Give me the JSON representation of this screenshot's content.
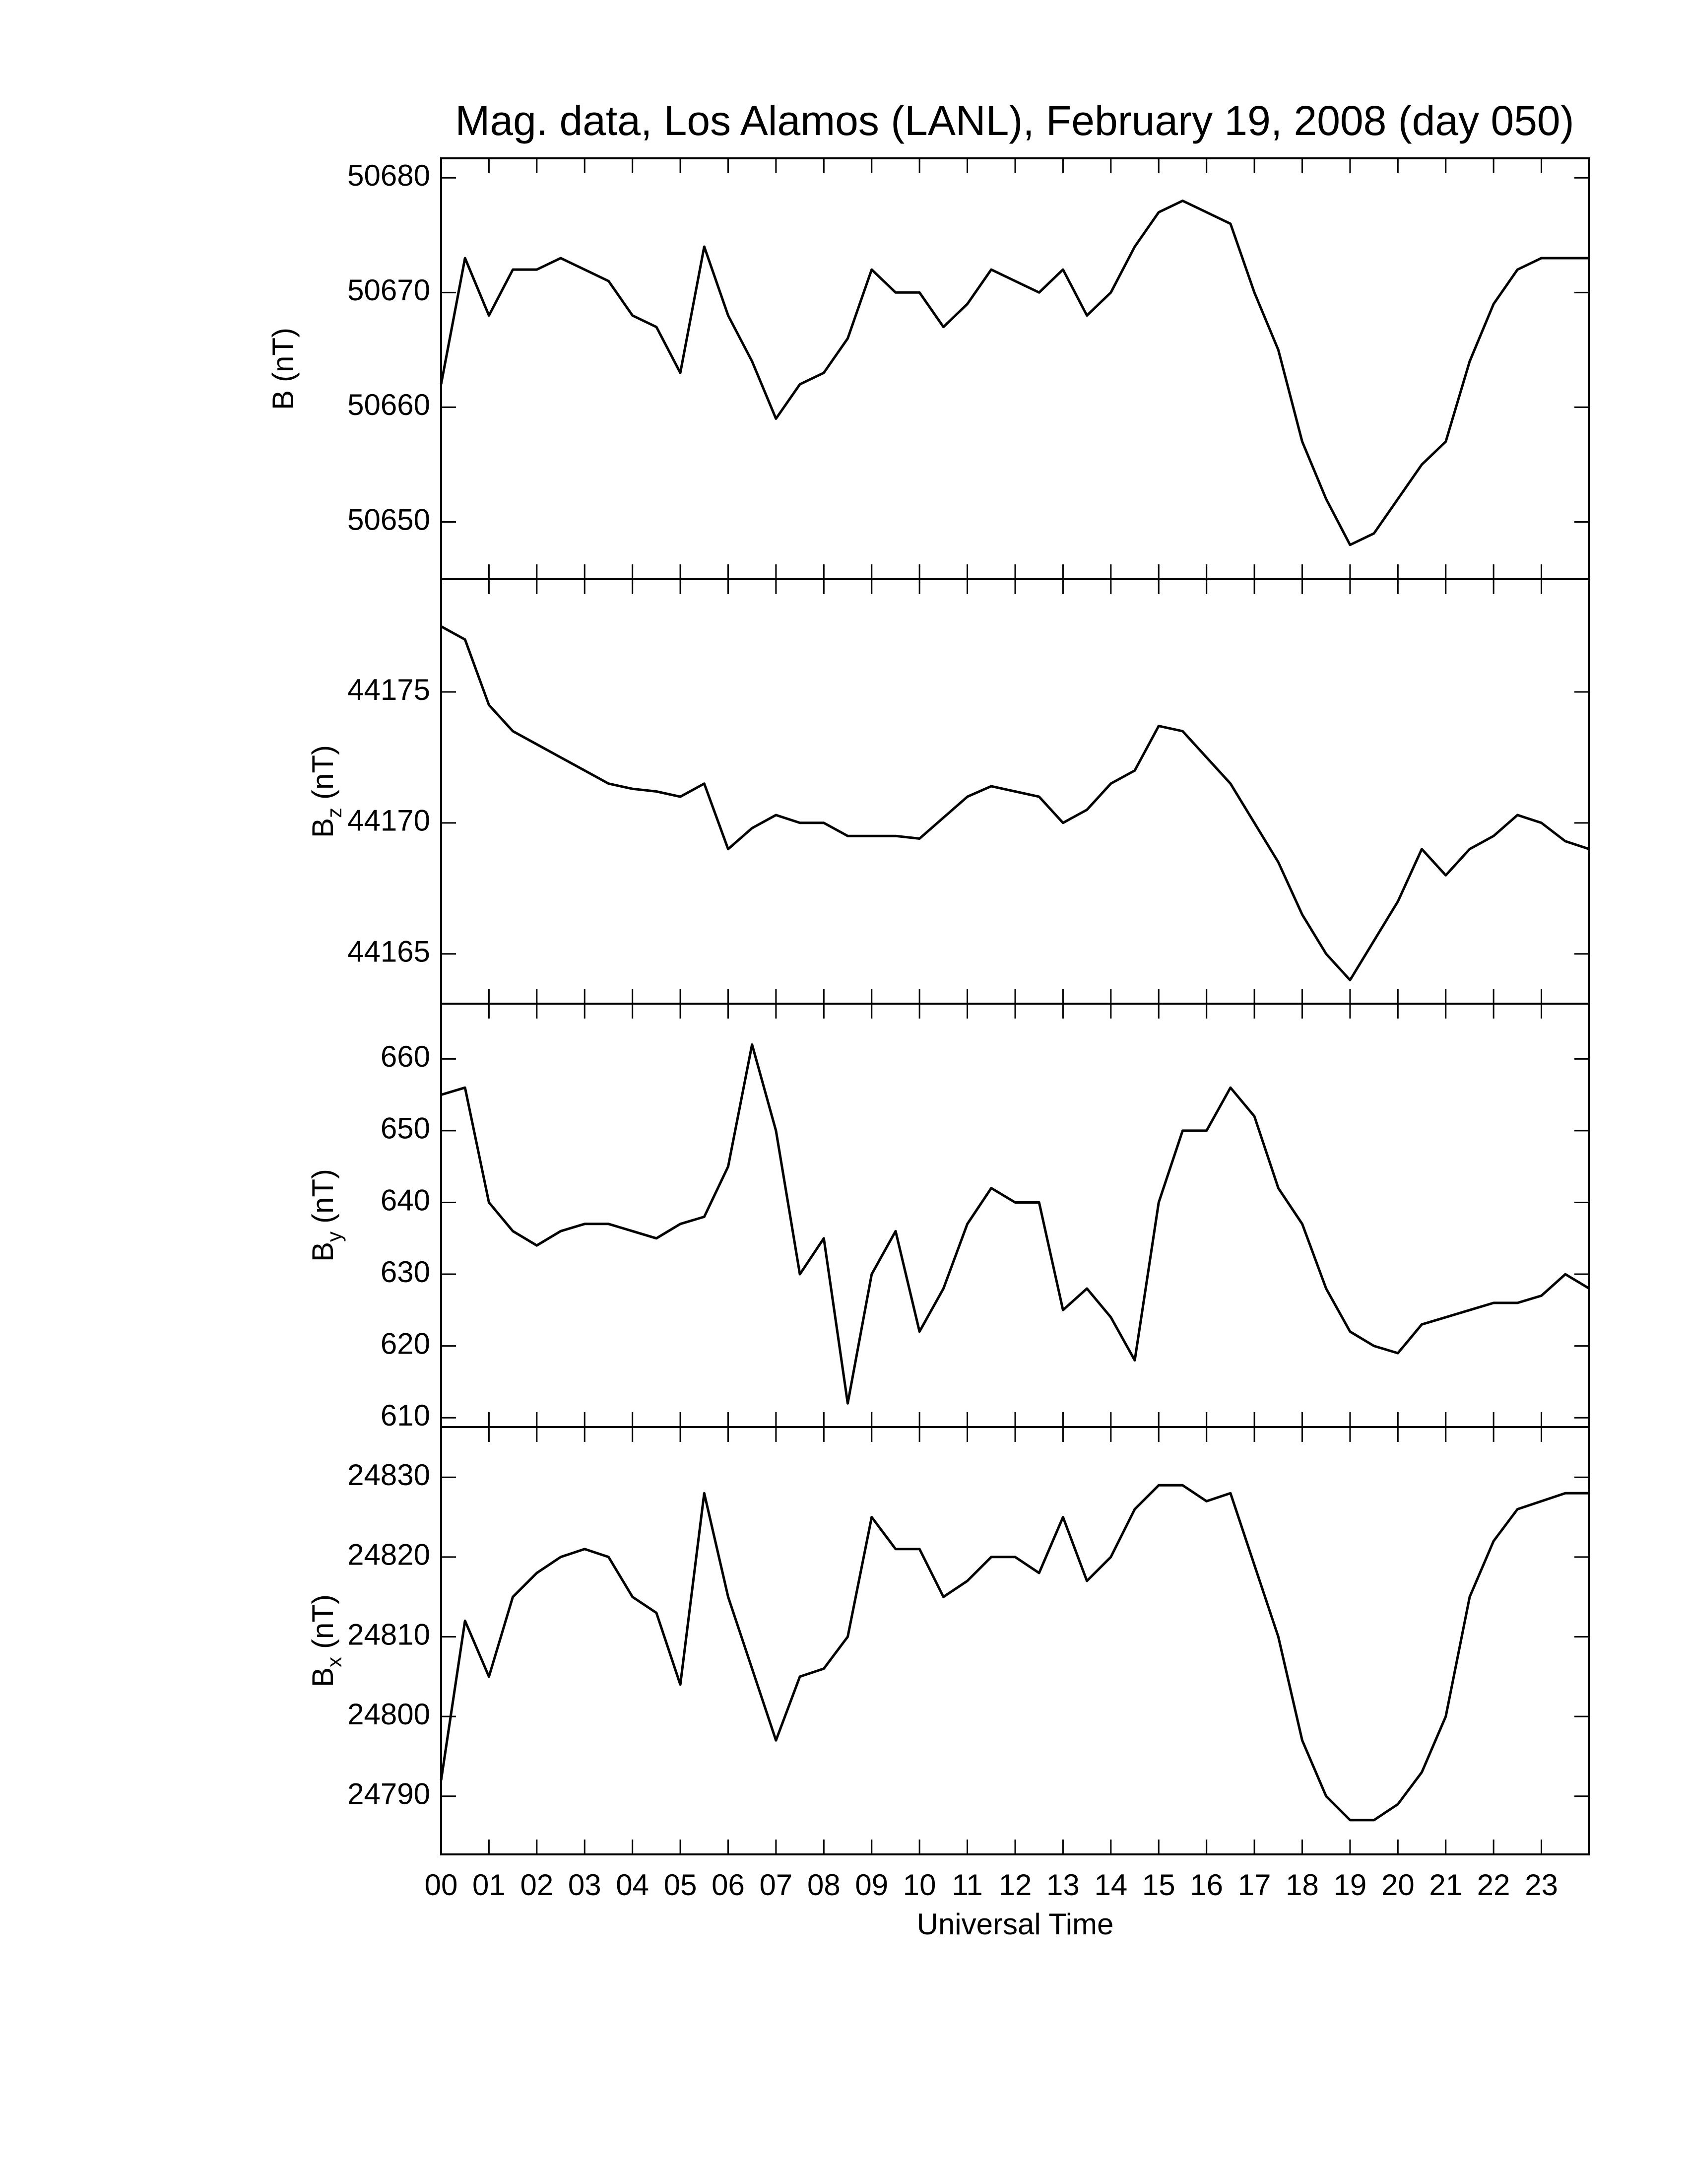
{
  "chart_data": [
    {
      "type": "line",
      "title": "Mag. data, Los Alamos (LANL), February 19, 2008 (day 050)",
      "ylabel": {
        "base": "B",
        "unit": "(nT)"
      },
      "color": "#000000",
      "x": [
        0,
        0.5,
        1,
        1.5,
        2,
        2.5,
        3,
        3.5,
        4,
        4.5,
        5,
        5.5,
        6,
        6.5,
        7,
        7.5,
        8,
        8.5,
        9,
        9.5,
        10,
        10.5,
        11,
        11.5,
        12,
        12.5,
        13,
        13.5,
        14,
        14.5,
        15,
        15.5,
        16,
        16.5,
        17,
        17.5,
        18,
        18.5,
        19,
        19.5,
        20,
        20.5,
        21,
        21.5,
        22,
        22.5,
        23,
        23.5,
        24
      ],
      "values": [
        50662,
        50673,
        50668,
        50672,
        50672,
        50673,
        50672,
        50671,
        50668,
        50667,
        50663,
        50674,
        50668,
        50664,
        50659,
        50662,
        50663,
        50666,
        50672,
        50670,
        50670,
        50667,
        50669,
        50672,
        50671,
        50670,
        50672,
        50668,
        50670,
        50674,
        50677,
        50678,
        50677,
        50676,
        50670,
        50665,
        50657,
        50652,
        50648,
        50649,
        50652,
        50655,
        50657,
        50664,
        50669,
        50672,
        50673,
        50673,
        50673
      ],
      "xlim": [
        0,
        24
      ],
      "xticks": [
        0,
        1,
        2,
        3,
        4,
        5,
        6,
        7,
        8,
        9,
        10,
        11,
        12,
        13,
        14,
        15,
        16,
        17,
        18,
        19,
        20,
        21,
        22,
        23
      ],
      "ylim": [
        50645,
        50681.7
      ],
      "yticks": [
        50650,
        50660,
        50670,
        50680
      ]
    },
    {
      "type": "line",
      "ylabel": {
        "base": "B",
        "sub": "z",
        "unit": "(nT)"
      },
      "color": "#000000",
      "x": [
        0,
        0.5,
        1,
        1.5,
        2,
        2.5,
        3,
        3.5,
        4,
        4.5,
        5,
        5.5,
        6,
        6.5,
        7,
        7.5,
        8,
        8.5,
        9,
        9.5,
        10,
        10.5,
        11,
        11.5,
        12,
        12.5,
        13,
        13.5,
        14,
        14.5,
        15,
        15.5,
        16,
        16.5,
        17,
        17.5,
        18,
        18.5,
        19,
        19.5,
        20,
        20.5,
        21,
        21.5,
        22,
        22.5,
        23,
        23.5,
        24
      ],
      "values": [
        44177.5,
        44177,
        44174.5,
        44173.5,
        44173,
        44172.5,
        44172,
        44171.5,
        44171.3,
        44171.2,
        44171,
        44171.5,
        44169,
        44169.8,
        44170.3,
        44170,
        44170,
        44169.5,
        44169.5,
        44169.5,
        44169.4,
        44170.2,
        44171,
        44171.4,
        44171.2,
        44171,
        44170,
        44170.5,
        44171.5,
        44172,
        44173.7,
        44173.5,
        44172.5,
        44171.5,
        44170,
        44168.5,
        44166.5,
        44165,
        44164,
        44165.5,
        44167,
        44169,
        44168,
        44169,
        44169.5,
        44170.3,
        44170,
        44169.3,
        44169
      ],
      "xlim": [
        0,
        24
      ],
      "xticks": [
        0,
        1,
        2,
        3,
        4,
        5,
        6,
        7,
        8,
        9,
        10,
        11,
        12,
        13,
        14,
        15,
        16,
        17,
        18,
        19,
        20,
        21,
        22,
        23
      ],
      "ylim": [
        44163.1,
        44179.3
      ],
      "yticks": [
        44165,
        44170,
        44175
      ]
    },
    {
      "type": "line",
      "ylabel": {
        "base": "B",
        "sub": "y",
        "unit": "(nT)"
      },
      "color": "#000000",
      "x": [
        0,
        0.5,
        1,
        1.5,
        2,
        2.5,
        3,
        3.5,
        4,
        4.5,
        5,
        5.5,
        6,
        6.5,
        7,
        7.5,
        8,
        8.5,
        9,
        9.5,
        10,
        10.5,
        11,
        11.5,
        12,
        12.5,
        13,
        13.5,
        14,
        14.5,
        15,
        15.5,
        16,
        16.5,
        17,
        17.5,
        18,
        18.5,
        19,
        19.5,
        20,
        20.5,
        21,
        21.5,
        22,
        22.5,
        23,
        23.5,
        24
      ],
      "values": [
        655,
        656,
        640,
        636,
        634,
        636,
        637,
        637,
        636,
        635,
        637,
        638,
        645,
        662,
        650,
        630,
        635,
        612,
        630,
        636,
        622,
        628,
        637,
        642,
        640,
        640,
        625,
        628,
        624,
        618,
        640,
        650,
        650,
        656,
        652,
        642,
        637,
        628,
        622,
        620,
        619,
        623,
        624,
        625,
        626,
        626,
        627,
        630,
        628
      ],
      "xlim": [
        0,
        24
      ],
      "xticks": [
        0,
        1,
        2,
        3,
        4,
        5,
        6,
        7,
        8,
        9,
        10,
        11,
        12,
        13,
        14,
        15,
        16,
        17,
        18,
        19,
        20,
        21,
        22,
        23
      ],
      "ylim": [
        608.7,
        667.7
      ],
      "yticks": [
        610,
        620,
        630,
        640,
        650,
        660
      ]
    },
    {
      "type": "line",
      "ylabel": {
        "base": "B",
        "sub": "x",
        "unit": "(nT)"
      },
      "xlabel": "Universal Time",
      "color": "#000000",
      "x": [
        0,
        0.5,
        1,
        1.5,
        2,
        2.5,
        3,
        3.5,
        4,
        4.5,
        5,
        5.5,
        6,
        6.5,
        7,
        7.5,
        8,
        8.5,
        9,
        9.5,
        10,
        10.5,
        11,
        11.5,
        12,
        12.5,
        13,
        13.5,
        14,
        14.5,
        15,
        15.5,
        16,
        16.5,
        17,
        17.5,
        18,
        18.5,
        19,
        19.5,
        20,
        20.5,
        21,
        21.5,
        22,
        22.5,
        23,
        23.5,
        24
      ],
      "values": [
        24792,
        24812,
        24805,
        24815,
        24818,
        24820,
        24821,
        24820,
        24815,
        24813,
        24804,
        24828,
        24815,
        24806,
        24797,
        24805,
        24806,
        24810,
        24825,
        24821,
        24821,
        24815,
        24817,
        24820,
        24820,
        24818,
        24825,
        24817,
        24820,
        24826,
        24829,
        24829,
        24827,
        24828,
        24819,
        24810,
        24797,
        24790,
        24787,
        24787,
        24789,
        24793,
        24800,
        24815,
        24822,
        24826,
        24827,
        24828,
        24828
      ],
      "xlim": [
        0,
        24
      ],
      "xticks": [
        {
          "value": 0,
          "label": "00"
        },
        {
          "value": 1,
          "label": "01"
        },
        {
          "value": 2,
          "label": "02"
        },
        {
          "value": 3,
          "label": "03"
        },
        {
          "value": 4,
          "label": "04"
        },
        {
          "value": 5,
          "label": "05"
        },
        {
          "value": 6,
          "label": "06"
        },
        {
          "value": 7,
          "label": "07"
        },
        {
          "value": 8,
          "label": "08"
        },
        {
          "value": 9,
          "label": "09"
        },
        {
          "value": 10,
          "label": "10"
        },
        {
          "value": 11,
          "label": "11"
        },
        {
          "value": 12,
          "label": "12"
        },
        {
          "value": 13,
          "label": "13"
        },
        {
          "value": 14,
          "label": "14"
        },
        {
          "value": 15,
          "label": "15"
        },
        {
          "value": 16,
          "label": "16"
        },
        {
          "value": 17,
          "label": "17"
        },
        {
          "value": 18,
          "label": "18"
        },
        {
          "value": 19,
          "label": "19"
        },
        {
          "value": 20,
          "label": "20"
        },
        {
          "value": 21,
          "label": "21"
        },
        {
          "value": 22,
          "label": "22"
        },
        {
          "value": 23,
          "label": "23"
        }
      ],
      "ylim": [
        24782.7,
        24836.3
      ],
      "yticks": [
        24790,
        24800,
        24810,
        24820,
        24830
      ]
    }
  ]
}
